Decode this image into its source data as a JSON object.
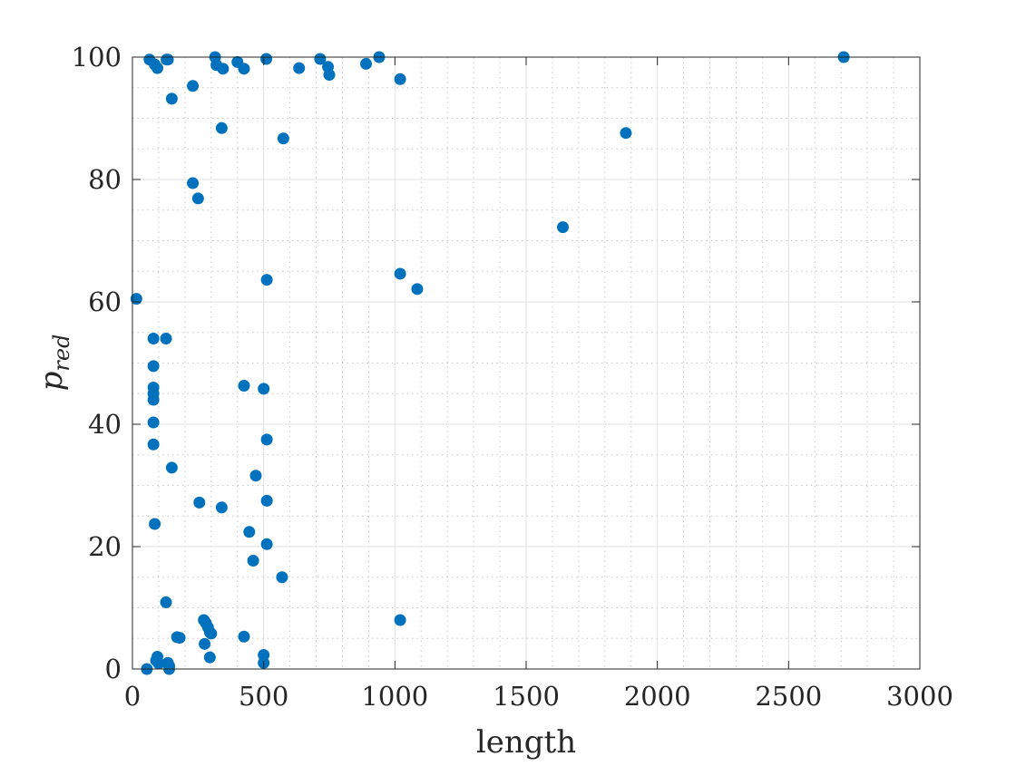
{
  "chart_data": {
    "type": "scatter",
    "xlabel": "length",
    "ylabel_base": "p",
    "ylabel_sub": "red",
    "xlim": [
      0,
      3000
    ],
    "ylim": [
      0,
      100
    ],
    "xticks": [
      0,
      500,
      1000,
      1500,
      2000,
      2500,
      3000
    ],
    "yticks": [
      0,
      20,
      40,
      60,
      80,
      100
    ],
    "grid": true,
    "minor_grid": true,
    "marker_color": "#0072BD",
    "points": [
      [
        15,
        60.5
      ],
      [
        55,
        0
      ],
      [
        65,
        99.6
      ],
      [
        85,
        98.8
      ],
      [
        95,
        98.2
      ],
      [
        130,
        99.6
      ],
      [
        135,
        99.6
      ],
      [
        150,
        93.2
      ],
      [
        80,
        54
      ],
      [
        128,
        54
      ],
      [
        80,
        49.5
      ],
      [
        80,
        46
      ],
      [
        80,
        45
      ],
      [
        80,
        44
      ],
      [
        80,
        40.3
      ],
      [
        80,
        36.7
      ],
      [
        85,
        23.7
      ],
      [
        150,
        32.9
      ],
      [
        128,
        10.9
      ],
      [
        95,
        2
      ],
      [
        90,
        1.4
      ],
      [
        100,
        0.9
      ],
      [
        135,
        1
      ],
      [
        140,
        0.5
      ],
      [
        140,
        0
      ],
      [
        170,
        5.2
      ],
      [
        180,
        5.1
      ],
      [
        230,
        95.3
      ],
      [
        230,
        79.4
      ],
      [
        250,
        76.9
      ],
      [
        255,
        27.2
      ],
      [
        272,
        8
      ],
      [
        280,
        7.5
      ],
      [
        288,
        6.8
      ],
      [
        295,
        6
      ],
      [
        300,
        5.8
      ],
      [
        275,
        4.1
      ],
      [
        295,
        1.9
      ],
      [
        315,
        100
      ],
      [
        320,
        98.7
      ],
      [
        345,
        98.1
      ],
      [
        340,
        88.4
      ],
      [
        340,
        26.4
      ],
      [
        400,
        99.2
      ],
      [
        425,
        98.1
      ],
      [
        425,
        46.3
      ],
      [
        425,
        5.3
      ],
      [
        445,
        22.4
      ],
      [
        460,
        17.7
      ],
      [
        470,
        31.6
      ],
      [
        500,
        45.8
      ],
      [
        500,
        2.3
      ],
      [
        500,
        1
      ],
      [
        510,
        99.7
      ],
      [
        512,
        63.6
      ],
      [
        512,
        37.5
      ],
      [
        512,
        27.5
      ],
      [
        512,
        20.4
      ],
      [
        570,
        15
      ],
      [
        575,
        86.7
      ],
      [
        635,
        98.2
      ],
      [
        715,
        99.7
      ],
      [
        745,
        98.4
      ],
      [
        750,
        97.1
      ],
      [
        890,
        98.9
      ],
      [
        940,
        100
      ],
      [
        1020,
        96.4
      ],
      [
        1020,
        64.6
      ],
      [
        1020,
        8
      ],
      [
        1085,
        62.1
      ],
      [
        1640,
        72.2
      ],
      [
        1880,
        87.6
      ],
      [
        2710,
        100
      ]
    ]
  }
}
